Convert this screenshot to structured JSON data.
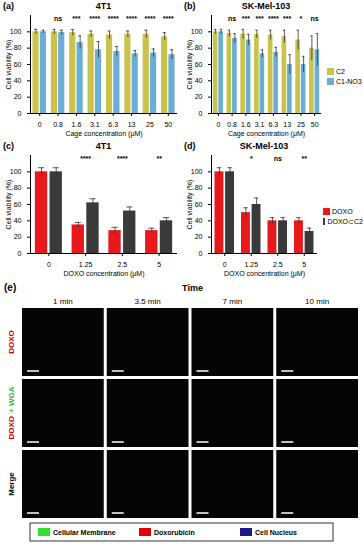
{
  "chart_data": [
    {
      "type": "bar",
      "panel_label": "(a)",
      "title": "4T1",
      "x_label": "Cage concentration (μM)",
      "y_label": "Cell viability (%)",
      "categories": [
        "0",
        "0.8",
        "1.6",
        "3.1",
        "6.3",
        "13",
        "25",
        "50"
      ],
      "series": [
        {
          "name": "C2",
          "color": "#c9c24b",
          "values": [
            100,
            100,
            99,
            97,
            96,
            97,
            97,
            94
          ],
          "errors": [
            3,
            3,
            4,
            4,
            5,
            4,
            5,
            5
          ]
        },
        {
          "name": "C1-NO3",
          "color": "#6aaed6",
          "values": [
            100,
            99,
            87,
            78,
            76,
            73,
            74,
            72
          ],
          "errors": [
            2,
            3,
            8,
            10,
            6,
            4,
            5,
            6
          ]
        }
      ],
      "annotations": [
        null,
        "ns",
        "***",
        "****",
        "****",
        "****",
        "****",
        "****"
      ],
      "ylim": [
        0,
        120
      ],
      "yticks": [
        0,
        20,
        40,
        60,
        80,
        100
      ]
    },
    {
      "type": "bar",
      "panel_label": "(b)",
      "title": "SK-Mel-103",
      "x_label": "Cage concentration (μM)",
      "y_label": "Cell viability (%)",
      "categories": [
        "0",
        "0.8",
        "1.6",
        "3.1",
        "6.3",
        "13",
        "25",
        "50"
      ],
      "series": [
        {
          "name": "C2",
          "color": "#c9c24b",
          "values": [
            100,
            98,
            97,
            97,
            96,
            94,
            90,
            80
          ],
          "errors": [
            3,
            4,
            6,
            5,
            6,
            8,
            12,
            15
          ]
        },
        {
          "name": "C1-NO3",
          "color": "#6aaed6",
          "values": [
            100,
            92,
            90,
            73,
            75,
            60,
            60,
            78
          ],
          "errors": [
            3,
            6,
            7,
            5,
            6,
            12,
            10,
            20
          ]
        }
      ],
      "annotations": [
        null,
        "ns",
        "***",
        "***",
        "****",
        "***",
        "*",
        "ns"
      ],
      "ylim": [
        0,
        120
      ],
      "yticks": [
        0,
        20,
        40,
        60,
        80,
        100
      ],
      "legend": "right"
    },
    {
      "type": "bar",
      "panel_label": "(c)",
      "title": "4T1",
      "x_label": "DOXO concentration (μM)",
      "y_label": "Cell viability (%)",
      "categories": [
        "0",
        "1.25",
        "2.5",
        "5"
      ],
      "series": [
        {
          "name": "DOXO",
          "color": "#e8191c",
          "values": [
            100,
            35,
            28,
            28
          ],
          "errors": [
            5,
            3,
            4,
            3
          ]
        },
        {
          "name": "DOXO⊂C2",
          "color": "#3a3a3a",
          "values": [
            100,
            62,
            52,
            40
          ],
          "errors": [
            5,
            5,
            5,
            4
          ]
        }
      ],
      "annotations": [
        null,
        "****",
        "****",
        "**"
      ],
      "ylim": [
        0,
        120
      ],
      "yticks": [
        0,
        20,
        40,
        60,
        80,
        100
      ]
    },
    {
      "type": "bar",
      "panel_label": "(d)",
      "title": "SK-Mel-103",
      "x_label": "DOXO concentration (μM)",
      "y_label": "Cell viability (%)",
      "categories": [
        "0",
        "1.25",
        "2.5",
        "5"
      ],
      "series": [
        {
          "name": "DOXO",
          "color": "#e8191c",
          "values": [
            100,
            50,
            40,
            40
          ],
          "errors": [
            5,
            6,
            4,
            4
          ]
        },
        {
          "name": "DOXO⊂C2",
          "color": "#3a3a3a",
          "values": [
            100,
            60,
            40,
            27
          ],
          "errors": [
            5,
            8,
            4,
            4
          ]
        }
      ],
      "annotations": [
        null,
        "*",
        "ns",
        "**"
      ],
      "ylim": [
        0,
        120
      ],
      "yticks": [
        0,
        20,
        40,
        60,
        80,
        100
      ],
      "legend": "right"
    }
  ],
  "microscopy": {
    "panel_label": "(e)",
    "axis_title": "Time",
    "columns": [
      "1 min",
      "3.5 min",
      "7 min",
      "10 min"
    ],
    "rows": [
      [
        {
          "text": "DOXO",
          "color": "#d40000"
        }
      ],
      [
        {
          "text": "DOXO",
          "color": "#d40000"
        },
        {
          "text": "+ WGA",
          "color": "#2fb82f"
        }
      ],
      [
        {
          "text": "Merge",
          "color": "#000000"
        }
      ]
    ],
    "legend": [
      {
        "label": "Cellular Membrane",
        "color": "#33dd33"
      },
      {
        "label": "Doxorubicin",
        "color": "#e00000"
      },
      {
        "label": "Cell Nucleus",
        "color": "#1a1a8c"
      }
    ]
  }
}
